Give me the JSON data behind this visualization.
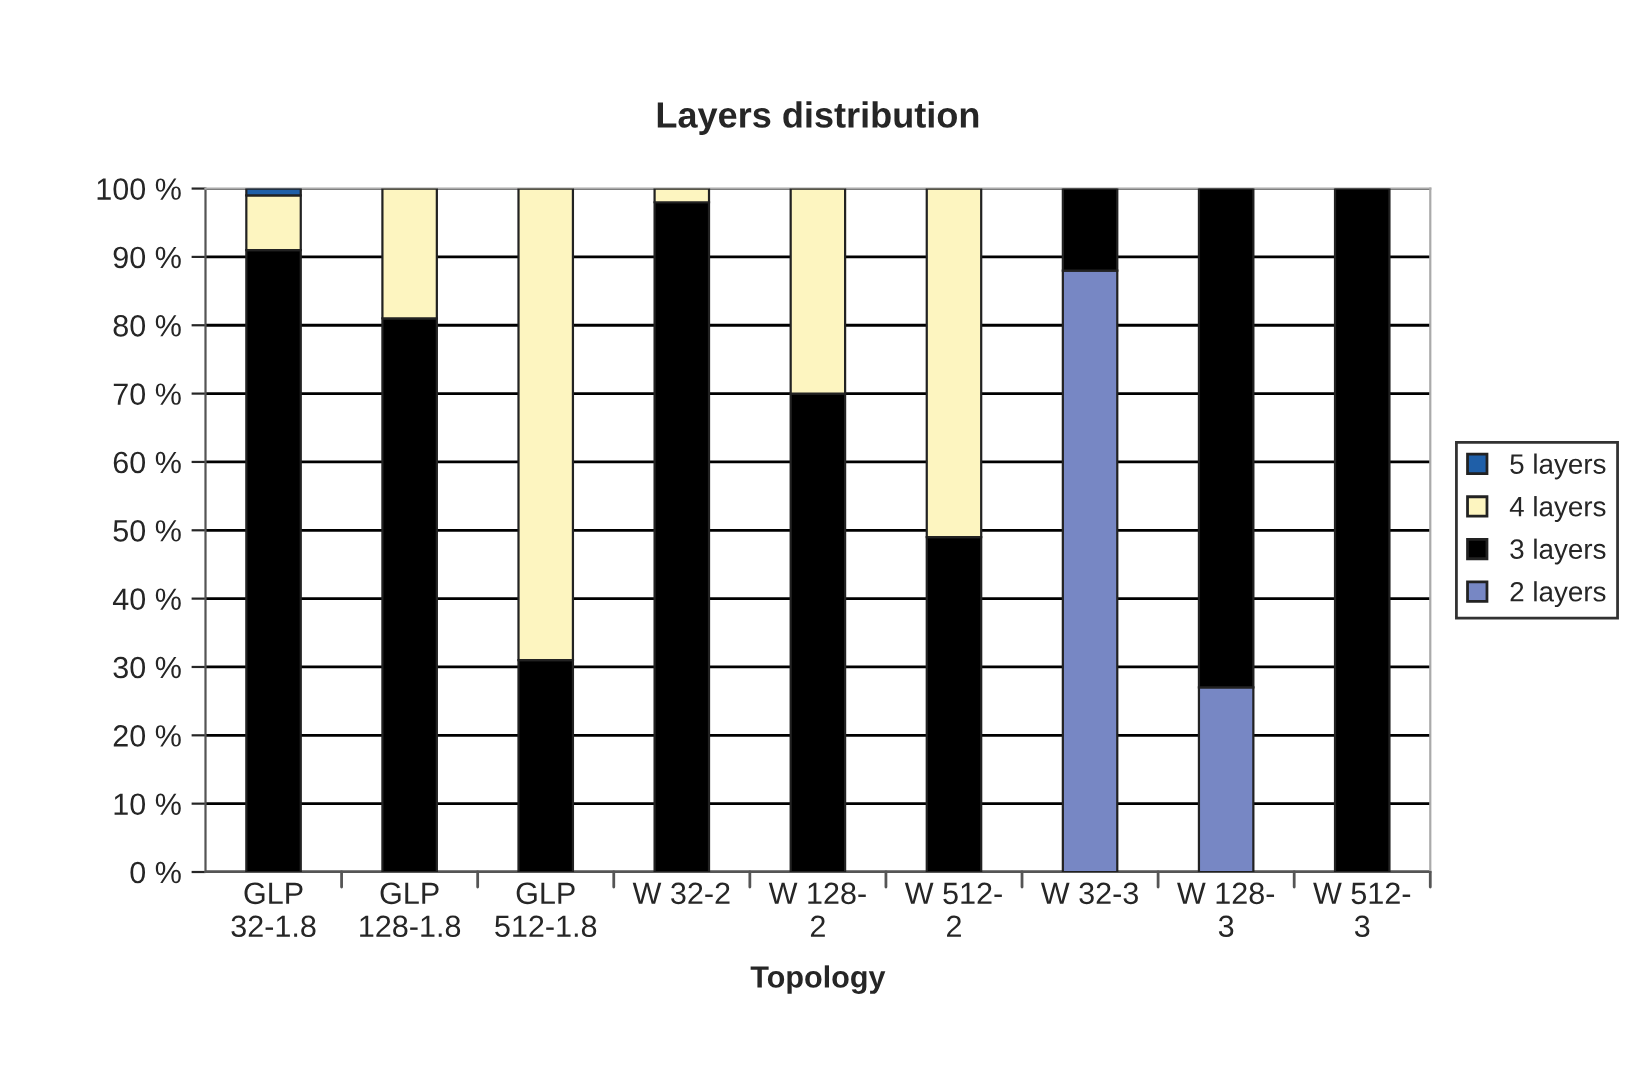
{
  "chart_data": {
    "type": "bar",
    "title": "Layers distribution",
    "xlabel": "Topology",
    "stacked": true,
    "categories": [
      "GLP\n32-1.8",
      "GLP\n128-1.8",
      "GLP\n512-1.8",
      "W 32-2",
      "W 128-\n2",
      "W 512-\n2",
      "W 32-3",
      "W 128-\n3",
      "W 512-\n3"
    ],
    "series": [
      {
        "name": "2 layers",
        "color": "#7787c4",
        "values": [
          null,
          null,
          null,
          null,
          null,
          null,
          88,
          27,
          null
        ]
      },
      {
        "name": "3 layers",
        "color": "#000000",
        "values": [
          91,
          81,
          31,
          98,
          70,
          49,
          12,
          73,
          100
        ]
      },
      {
        "name": "4 layers",
        "color": "#fdf5c0",
        "values": [
          8,
          19,
          69,
          2,
          30,
          51,
          null,
          null,
          null
        ]
      },
      {
        "name": "5 layers",
        "color": "#1f5fa8",
        "values": [
          1,
          null,
          null,
          null,
          null,
          null,
          null,
          null,
          null
        ]
      }
    ],
    "ylim": [
      0,
      100
    ],
    "yticks": [
      {
        "value": 0,
        "label": "0 %"
      },
      {
        "value": 10,
        "label": "10 %"
      },
      {
        "value": 20,
        "label": "20 %"
      },
      {
        "value": 30,
        "label": "30 %"
      },
      {
        "value": 40,
        "label": "40 %"
      },
      {
        "value": 50,
        "label": "50 %"
      },
      {
        "value": 60,
        "label": "60 %"
      },
      {
        "value": 70,
        "label": "70 %"
      },
      {
        "value": 80,
        "label": "80 %"
      },
      {
        "value": 90,
        "label": "90 %"
      },
      {
        "value": 100,
        "label": "100 %"
      }
    ],
    "grid": "y",
    "legend": "right"
  }
}
